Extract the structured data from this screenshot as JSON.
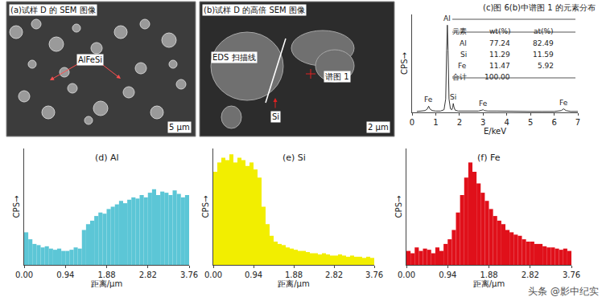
{
  "images": [
    {
      "title": "(a)试样 D 的 SEM 图像",
      "labels": [
        "AlFeSi"
      ],
      "scale_bar": "5 μm"
    },
    {
      "title": "(b)试样 D 的高倍 SEM 图像",
      "labels": [
        "EDS 扫描线",
        "谱图 1",
        "Si"
      ],
      "scale_bar": "2 μm"
    }
  ],
  "table": {
    "header": [
      "元素",
      "wt(%)",
      "at(%)"
    ],
    "rows": [
      [
        "Al",
        "77.24",
        "82.49"
      ],
      [
        "Si",
        "11.29",
        "11.59"
      ],
      [
        "Fe",
        "11.47",
        "5.92"
      ]
    ],
    "total": [
      "合计",
      "100.00"
    ]
  },
  "watermark": "头条 @影中纪实",
  "chart_data": [
    {
      "type": "line",
      "title": "(c)图 6(b)中谱图 1 的元素分布",
      "x_label": "E/keV",
      "y_label": "CPS→",
      "x": [
        0.2,
        0.4,
        0.55,
        0.65,
        0.7,
        0.75,
        0.85,
        1.0,
        1.2,
        1.35,
        1.42,
        1.46,
        1.49,
        1.52,
        1.56,
        1.62,
        1.68,
        1.72,
        1.74,
        1.77,
        1.82,
        1.95,
        2.2,
        2.5,
        2.8,
        2.95,
        3.0,
        3.05,
        3.2,
        3.6,
        4.0,
        4.5,
        5.0,
        5.5,
        6.0,
        6.3,
        6.4,
        6.5,
        6.7,
        7.0
      ],
      "values": [
        1,
        1.5,
        2,
        4,
        7,
        4,
        2,
        1.5,
        1.5,
        3,
        15,
        70,
        98,
        70,
        15,
        4,
        3,
        6,
        10,
        6,
        2.5,
        1.5,
        1.5,
        1.5,
        1.5,
        2.5,
        3,
        2,
        1.5,
        1.5,
        1.2,
        1,
        1,
        1,
        1,
        2,
        4,
        2,
        1,
        1
      ],
      "color": "#333333",
      "xlim": [
        0,
        7
      ],
      "xticks": [
        0,
        1,
        2,
        3,
        4,
        5,
        6,
        7
      ],
      "ylim": [
        0,
        110
      ],
      "tick_labels": "x",
      "annotations": [
        {
          "text": "Al",
          "x": 1.49,
          "y": 98
        },
        {
          "text": "Fe",
          "x": 0.7,
          "y": 7
        },
        {
          "text": "Si",
          "x": 1.74,
          "y": 10
        },
        {
          "text": "Fe",
          "x": 3.0,
          "y": 3
        },
        {
          "text": "Fe",
          "x": 6.4,
          "y": 4
        }
      ]
    },
    {
      "type": "histogram",
      "title": "(d) Al",
      "x_label": "距离/μm",
      "y_label": "CPS→",
      "color": "#5cc6d6",
      "bins": [
        0,
        0.094,
        0.188,
        0.282,
        0.376,
        0.47,
        0.564,
        0.658,
        0.752,
        0.846,
        0.94,
        1.034,
        1.128,
        1.222,
        1.316,
        1.41,
        1.504,
        1.598,
        1.692,
        1.786,
        1.88,
        1.974,
        2.068,
        2.162,
        2.256,
        2.35,
        2.444,
        2.538,
        2.632,
        2.726,
        2.82,
        2.914,
        3.008,
        3.102,
        3.196,
        3.29,
        3.384,
        3.478,
        3.572,
        3.666,
        3.76
      ],
      "values": [
        28,
        22,
        18,
        17,
        15,
        16,
        14,
        13,
        14,
        12,
        12,
        13,
        15,
        14,
        30,
        35,
        38,
        42,
        45,
        44,
        48,
        50,
        52,
        55,
        53,
        56,
        58,
        57,
        60,
        58,
        62,
        65,
        60,
        63,
        62,
        60,
        64,
        61,
        58,
        60
      ],
      "xlim": [
        0,
        3.76
      ],
      "xticks": [
        {
          "value": 0,
          "label": "0.00"
        },
        0.94,
        1.88,
        2.82,
        3.76
      ],
      "ylim": [
        0,
        100
      ],
      "tick_labels": "x"
    },
    {
      "type": "histogram",
      "title": "(e) Si",
      "x_label": "距离/μm",
      "y_label": "CPS→",
      "color": "#f2ee00",
      "bins": [
        0,
        0.094,
        0.188,
        0.282,
        0.376,
        0.47,
        0.564,
        0.658,
        0.752,
        0.846,
        0.94,
        1.034,
        1.128,
        1.222,
        1.316,
        1.41,
        1.504,
        1.598,
        1.692,
        1.786,
        1.88,
        1.974,
        2.068,
        2.162,
        2.256,
        2.35,
        2.444,
        2.538,
        2.632,
        2.726,
        2.82,
        2.914,
        3.008,
        3.102,
        3.196,
        3.29,
        3.384,
        3.478,
        3.572,
        3.666,
        3.76
      ],
      "values": [
        80,
        88,
        92,
        90,
        95,
        88,
        92,
        90,
        85,
        88,
        82,
        75,
        50,
        35,
        25,
        20,
        18,
        17,
        15,
        14,
        13,
        12,
        12,
        11,
        10,
        10,
        9,
        10,
        9,
        8,
        8,
        9,
        8,
        7,
        8,
        7,
        7,
        6,
        7,
        6
      ],
      "xlim": [
        0,
        3.76
      ],
      "xticks": [
        {
          "value": 0,
          "label": "0.00"
        },
        0.94,
        1.88,
        2.82,
        3.76
      ],
      "ylim": [
        0,
        100
      ],
      "tick_labels": "x"
    },
    {
      "type": "histogram",
      "title": "(f) Fe",
      "x_label": "距离/μm",
      "y_label": "CPS→",
      "color": "#e0101a",
      "bins": [
        0,
        0.094,
        0.188,
        0.282,
        0.376,
        0.47,
        0.564,
        0.658,
        0.752,
        0.846,
        0.94,
        1.034,
        1.128,
        1.222,
        1.316,
        1.41,
        1.504,
        1.598,
        1.692,
        1.786,
        1.88,
        1.974,
        2.068,
        2.162,
        2.256,
        2.35,
        2.444,
        2.538,
        2.632,
        2.726,
        2.82,
        2.914,
        3.008,
        3.102,
        3.196,
        3.29,
        3.384,
        3.478,
        3.572,
        3.666,
        3.76
      ],
      "values": [
        12,
        10,
        15,
        12,
        14,
        13,
        10,
        15,
        12,
        18,
        22,
        30,
        45,
        60,
        75,
        88,
        80,
        70,
        62,
        55,
        48,
        42,
        38,
        35,
        30,
        28,
        26,
        25,
        22,
        20,
        20,
        18,
        18,
        16,
        15,
        15,
        14,
        13,
        14,
        12
      ],
      "xlim": [
        0,
        3.76
      ],
      "xticks": [
        {
          "value": 0,
          "label": "0.00"
        },
        0.94,
        1.88,
        2.82,
        3.76
      ],
      "ylim": [
        0,
        100
      ],
      "tick_labels": "x"
    }
  ]
}
